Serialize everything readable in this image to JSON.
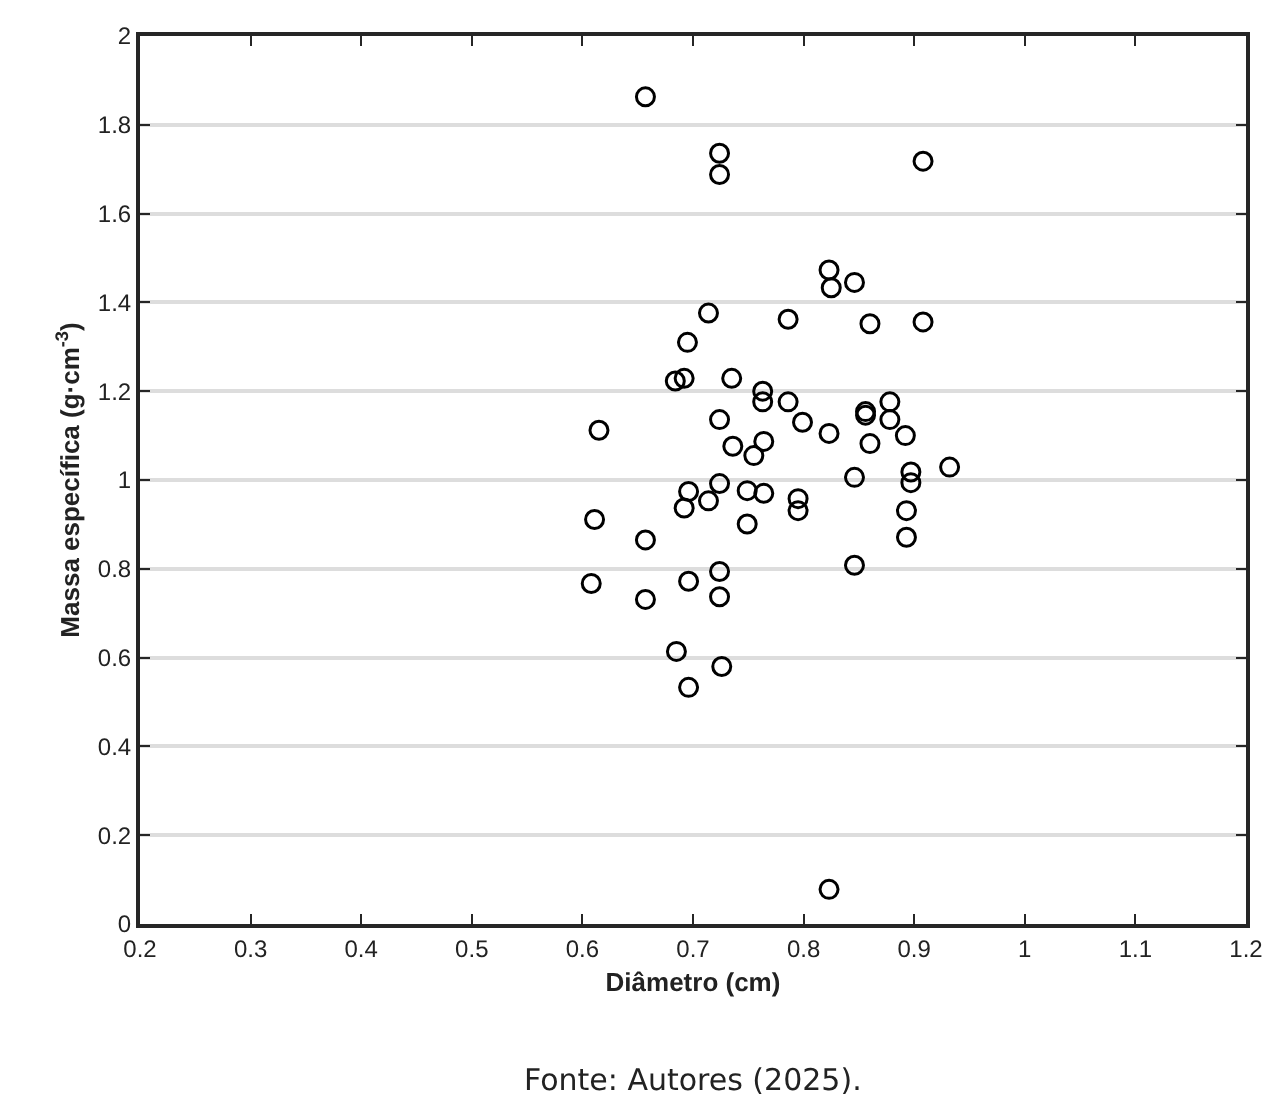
{
  "chart_data": {
    "type": "scatter",
    "xlabel": "Diâmetro (cm)",
    "ylabel": "Massa específica (g·cm$^{-3}$)",
    "annotations": [
      "Fonte: Autores (2025)."
    ],
    "x": [
      0.611,
      0.657,
      0.608,
      0.657,
      0.696,
      0.692,
      0.714,
      0.724,
      0.749,
      0.764,
      0.755,
      0.736,
      0.764,
      0.749,
      0.795,
      0.795,
      0.846,
      0.897,
      0.897,
      0.932,
      0.893,
      0.893,
      0.846,
      0.696,
      0.724,
      0.724,
      0.685,
      0.726,
      0.696,
      0.823,
      0.657,
      0.724,
      0.724,
      0.908,
      0.823,
      0.825,
      0.846,
      0.714,
      0.786,
      0.86,
      0.908,
      0.695,
      0.684,
      0.692,
      0.735,
      0.763,
      0.763,
      0.786,
      0.878,
      0.856,
      0.856,
      0.878,
      0.892,
      0.724,
      0.799,
      0.823,
      0.86,
      0.615
    ],
    "values": [
      0.911,
      0.865,
      0.767,
      0.731,
      0.974,
      0.937,
      0.953,
      0.992,
      0.976,
      0.97,
      1.055,
      1.076,
      1.087,
      0.901,
      0.958,
      0.931,
      1.006,
      1.018,
      0.994,
      1.029,
      0.931,
      0.871,
      0.808,
      0.772,
      0.794,
      0.737,
      0.614,
      0.58,
      0.533,
      0.078,
      1.863,
      1.736,
      1.688,
      1.718,
      1.473,
      1.433,
      1.445,
      1.376,
      1.362,
      1.352,
      1.356,
      1.31,
      1.223,
      1.229,
      1.229,
      1.2,
      1.176,
      1.176,
      1.176,
      1.154,
      1.146,
      1.136,
      1.1,
      1.136,
      1.13,
      1.105,
      1.082,
      1.112
    ],
    "color": "#000000",
    "marker": "circle",
    "grid": "y",
    "xlim": [
      0.2,
      1.2
    ],
    "xticks": [
      0.2,
      0.3,
      0.4,
      0.5,
      0.6,
      0.7,
      0.8,
      0.9,
      1,
      1.1,
      1.2
    ],
    "ylim": [
      0,
      2
    ],
    "yticks": [
      0,
      0.2,
      0.4,
      0.6,
      0.8,
      1,
      1.2,
      1.4,
      1.6,
      1.8,
      2
    ]
  }
}
